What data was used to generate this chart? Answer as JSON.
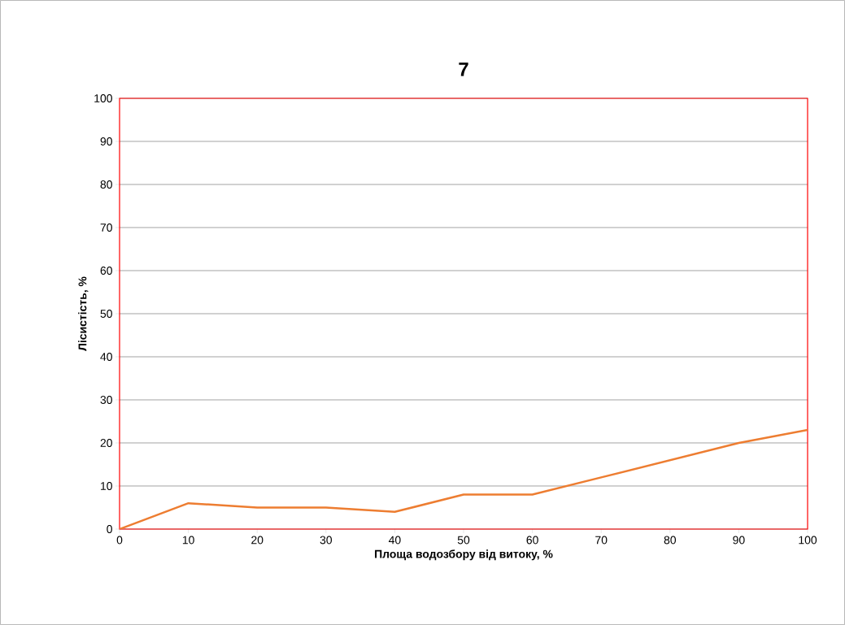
{
  "chart_data": {
    "type": "line",
    "title": "7",
    "xlabel": "Площа водозбору від витоку, %",
    "ylabel": "Лісистість, %",
    "x": [
      0,
      10,
      20,
      30,
      40,
      50,
      60,
      70,
      80,
      90,
      100
    ],
    "series": [
      {
        "color": "#ed7d31",
        "values": [
          0,
          6,
          5,
          5,
          4,
          8,
          8,
          12,
          16,
          20,
          23
        ]
      }
    ],
    "xlim": [
      0,
      100
    ],
    "ylim": [
      0,
      100
    ],
    "xticks": [
      0,
      10,
      20,
      30,
      40,
      50,
      60,
      70,
      80,
      90,
      100
    ],
    "yticks": [
      0,
      10,
      20,
      30,
      40,
      50,
      60,
      70,
      80,
      90,
      100
    ],
    "grid": "y",
    "marker": "none",
    "line_style": "solid"
  }
}
